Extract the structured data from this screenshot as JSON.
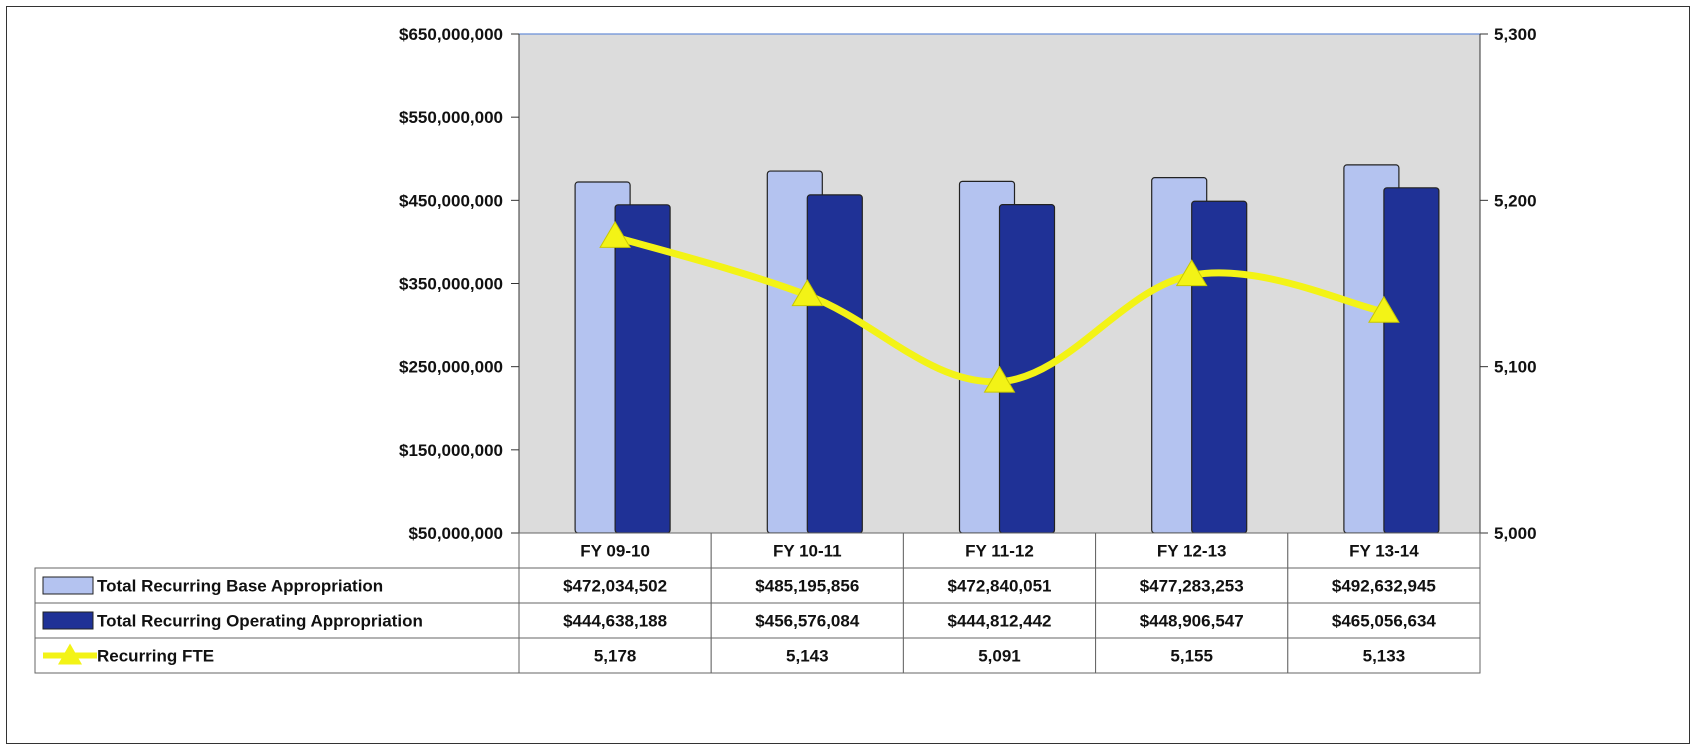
{
  "chart_data": {
    "type": "bar",
    "title": "",
    "categories": [
      "FY 09-10",
      "FY 10-11",
      "FY 11-12",
      "FY 12-13",
      "FY 13-14"
    ],
    "series": [
      {
        "name": "Total Recurring Base Appropriation",
        "kind": "bar",
        "axis": "left",
        "color": "#b4c3f0",
        "values": [
          472034502,
          485195856,
          472840051,
          477283253,
          492632945
        ],
        "labels": [
          "$472,034,502",
          "$485,195,856",
          "$472,840,051",
          "$477,283,253",
          "$492,632,945"
        ]
      },
      {
        "name": "Total Recurring Operating Appropriation",
        "kind": "bar",
        "axis": "left",
        "color": "#1f3196",
        "values": [
          444638188,
          456576084,
          444812442,
          448906547,
          465056634
        ],
        "labels": [
          "$444,638,188",
          "$456,576,084",
          "$444,812,442",
          "$448,906,547",
          "$465,056,634"
        ]
      },
      {
        "name": "Recurring FTE",
        "kind": "line",
        "axis": "right",
        "color": "#f3f316",
        "values": [
          5178,
          5143,
          5091,
          5155,
          5133
        ],
        "labels": [
          "5,178",
          "5,143",
          "5,091",
          "5,155",
          "5,133"
        ]
      }
    ],
    "y_left": {
      "ylim": [
        50000000,
        650000000
      ],
      "ticks": [
        50000000,
        150000000,
        250000000,
        350000000,
        450000000,
        550000000,
        650000000
      ],
      "tick_labels": [
        "$50,000,000",
        "$150,000,000",
        "$250,000,000",
        "$350,000,000",
        "$450,000,000",
        "$550,000,000",
        "$650,000,000"
      ]
    },
    "y_right": {
      "ylim": [
        5000,
        5300
      ],
      "ticks": [
        5000,
        5100,
        5200,
        5300
      ],
      "tick_labels": [
        "5,000",
        "5,100",
        "5,200",
        "5,300"
      ]
    },
    "grid": false,
    "legend": "data-table-below",
    "plot_background": "#dcdcdc"
  }
}
